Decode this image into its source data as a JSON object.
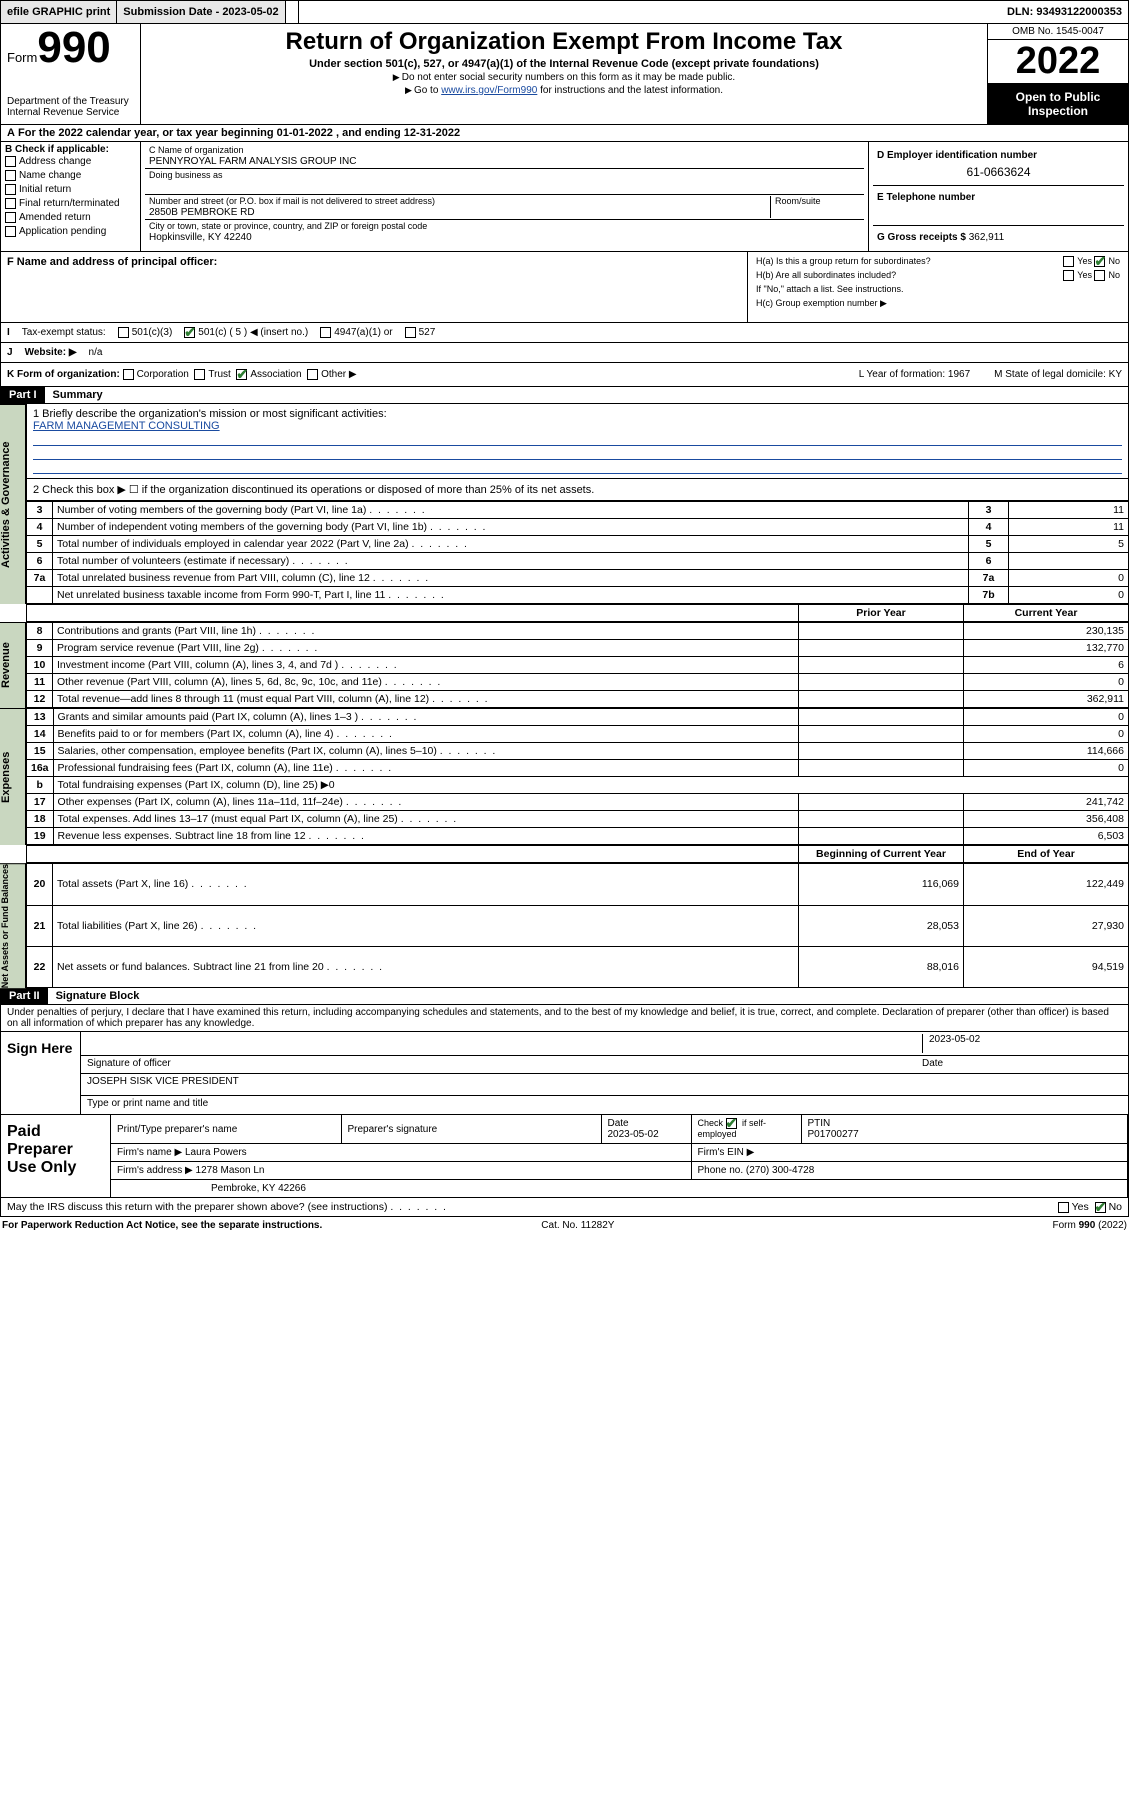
{
  "topbar": {
    "efile": "efile GRAPHIC print",
    "submission_label": "Submission Date - 2023-05-02",
    "dln": "DLN: 93493122000353"
  },
  "header": {
    "form_word": "Form",
    "form_num": "990",
    "dept": "Department of the Treasury\nInternal Revenue Service",
    "title": "Return of Organization Exempt From Income Tax",
    "subtitle": "Under section 501(c), 527, or 4947(a)(1) of the Internal Revenue Code (except private foundations)",
    "note1": "Do not enter social security numbers on this form as it may be made public.",
    "note2_pre": "Go to ",
    "note2_link": "www.irs.gov/Form990",
    "note2_post": " for instructions and the latest information.",
    "omb": "OMB No. 1545-0047",
    "year": "2022",
    "inspection": "Open to Public Inspection"
  },
  "period": {
    "text_a": "For the 2022 calendar year, or tax year beginning ",
    "begin": "01-01-2022",
    "mid": " , and ending ",
    "end": "12-31-2022"
  },
  "b": {
    "heading": "B Check if applicable:",
    "items": [
      "Address change",
      "Name change",
      "Initial return",
      "Final return/terminated",
      "Amended return",
      "Application pending"
    ]
  },
  "c": {
    "name_label": "C Name of organization",
    "name": "PENNYROYAL FARM ANALYSIS GROUP INC",
    "dba_label": "Doing business as",
    "addr_label": "Number and street (or P.O. box if mail is not delivered to street address)",
    "room_label": "Room/suite",
    "addr": "2850B PEMBROKE RD",
    "city_label": "City or town, state or province, country, and ZIP or foreign postal code",
    "city": "Hopkinsville, KY  42240"
  },
  "d": {
    "label": "D Employer identification number",
    "value": "61-0663624"
  },
  "e": {
    "label": "E Telephone number",
    "value": ""
  },
  "g": {
    "label": "G Gross receipts $",
    "value": "362,911"
  },
  "f": {
    "label": "F Name and address of principal officer:"
  },
  "h": {
    "a": "H(a)  Is this a group return for subordinates?",
    "b": "H(b)  Are all subordinates included?",
    "b_note": "If \"No,\" attach a list. See instructions.",
    "c": "H(c)  Group exemption number ▶",
    "yes": "Yes",
    "no": "No"
  },
  "i": {
    "label": "Tax-exempt status:",
    "opts": [
      "501(c)(3)",
      "501(c) ( 5 ) ◀ (insert no.)",
      "4947(a)(1) or",
      "527"
    ],
    "checked_index": 1
  },
  "j": {
    "label": "Website: ▶",
    "value": "n/a"
  },
  "k": {
    "label": "K Form of organization:",
    "opts": [
      "Corporation",
      "Trust",
      "Association",
      "Other ▶"
    ],
    "checked_index": 2,
    "l": "L Year of formation: 1967",
    "m": "M State of legal domicile: KY"
  },
  "part1": {
    "hdr": "Part I",
    "title": "Summary",
    "briefly_label": "1  Briefly describe the organization's mission or most significant activities:",
    "briefly_value": "FARM MANAGEMENT CONSULTING",
    "line2": "2   Check this box ▶ ☐  if the organization discontinued its operations or disposed of more than 25% of its net assets.",
    "sections": {
      "governance": "Activities & Governance",
      "revenue": "Revenue",
      "expenses": "Expenses",
      "netassets": "Net Assets or Fund Balances"
    },
    "gov_rows": [
      {
        "n": "3",
        "t": "Number of voting members of the governing body (Part VI, line 1a)",
        "box": "3",
        "v": "11"
      },
      {
        "n": "4",
        "t": "Number of independent voting members of the governing body (Part VI, line 1b)",
        "box": "4",
        "v": "11"
      },
      {
        "n": "5",
        "t": "Total number of individuals employed in calendar year 2022 (Part V, line 2a)",
        "box": "5",
        "v": "5"
      },
      {
        "n": "6",
        "t": "Total number of volunteers (estimate if necessary)",
        "box": "6",
        "v": ""
      },
      {
        "n": "7a",
        "t": "Total unrelated business revenue from Part VIII, column (C), line 12",
        "box": "7a",
        "v": "0"
      },
      {
        "n": "",
        "t": "Net unrelated business taxable income from Form 990-T, Part I, line 11",
        "box": "7b",
        "v": "0"
      }
    ],
    "two_col_hdr": {
      "prior": "Prior Year",
      "current": "Current Year"
    },
    "rev_rows": [
      {
        "n": "8",
        "t": "Contributions and grants (Part VIII, line 1h)",
        "p": "",
        "c": "230,135"
      },
      {
        "n": "9",
        "t": "Program service revenue (Part VIII, line 2g)",
        "p": "",
        "c": "132,770"
      },
      {
        "n": "10",
        "t": "Investment income (Part VIII, column (A), lines 3, 4, and 7d )",
        "p": "",
        "c": "6"
      },
      {
        "n": "11",
        "t": "Other revenue (Part VIII, column (A), lines 5, 6d, 8c, 9c, 10c, and 11e)",
        "p": "",
        "c": "0"
      },
      {
        "n": "12",
        "t": "Total revenue—add lines 8 through 11 (must equal Part VIII, column (A), line 12)",
        "p": "",
        "c": "362,911"
      }
    ],
    "exp_rows": [
      {
        "n": "13",
        "t": "Grants and similar amounts paid (Part IX, column (A), lines 1–3 )",
        "p": "",
        "c": "0"
      },
      {
        "n": "14",
        "t": "Benefits paid to or for members (Part IX, column (A), line 4)",
        "p": "",
        "c": "0"
      },
      {
        "n": "15",
        "t": "Salaries, other compensation, employee benefits (Part IX, column (A), lines 5–10)",
        "p": "",
        "c": "114,666"
      },
      {
        "n": "16a",
        "t": "Professional fundraising fees (Part IX, column (A), line 11e)",
        "p": "",
        "c": "0"
      },
      {
        "n": "b",
        "t": "Total fundraising expenses (Part IX, column (D), line 25) ▶0",
        "p": null,
        "c": null
      },
      {
        "n": "17",
        "t": "Other expenses (Part IX, column (A), lines 11a–11d, 11f–24e)",
        "p": "",
        "c": "241,742"
      },
      {
        "n": "18",
        "t": "Total expenses. Add lines 13–17 (must equal Part IX, column (A), line 25)",
        "p": "",
        "c": "356,408"
      },
      {
        "n": "19",
        "t": "Revenue less expenses. Subtract line 18 from line 12",
        "p": "",
        "c": "6,503"
      }
    ],
    "na_hdr": {
      "begin": "Beginning of Current Year",
      "end": "End of Year"
    },
    "na_rows": [
      {
        "n": "20",
        "t": "Total assets (Part X, line 16)",
        "p": "116,069",
        "c": "122,449"
      },
      {
        "n": "21",
        "t": "Total liabilities (Part X, line 26)",
        "p": "28,053",
        "c": "27,930"
      },
      {
        "n": "22",
        "t": "Net assets or fund balances. Subtract line 21 from line 20",
        "p": "88,016",
        "c": "94,519"
      }
    ]
  },
  "part2": {
    "hdr": "Part II",
    "title": "Signature Block",
    "jurat": "Under penalties of perjury, I declare that I have examined this return, including accompanying schedules and statements, and to the best of my knowledge and belief, it is true, correct, and complete. Declaration of preparer (other than officer) is based on all information of which preparer has any knowledge.",
    "sign_here": "Sign Here",
    "sig_officer": "Signature of officer",
    "date_label": "Date",
    "date": "2023-05-02",
    "officer_name": "JOSEPH SISK  VICE PRESIDENT",
    "officer_sub": "Type or print name and title",
    "paid": "Paid Preparer Use Only",
    "paid_cols": [
      "Print/Type preparer's name",
      "Preparer's signature",
      "Date",
      "",
      "PTIN"
    ],
    "paid_date": "2023-05-02",
    "paid_check": "Check ✔ if self-employed",
    "ptin": "P01700277",
    "firm_name_label": "Firm's name   ▶",
    "firm_name": "Laura Powers",
    "firm_ein_label": "Firm's EIN ▶",
    "firm_addr_label": "Firm's address ▶",
    "firm_addr1": "1278 Mason Ln",
    "firm_addr2": "Pembroke, KY  42266",
    "phone_label": "Phone no.",
    "phone": "(270) 300-4728",
    "discuss": "May the IRS discuss this return with the preparer shown above? (see instructions)",
    "discuss_yes": "Yes",
    "discuss_no": "No"
  },
  "footer": {
    "left": "For Paperwork Reduction Act Notice, see the separate instructions.",
    "mid": "Cat. No. 11282Y",
    "right": "Form 990 (2022)"
  },
  "colors": {
    "side_bg": "#c9d7c0",
    "link": "#1a4ba0",
    "check": "#2e7d32"
  }
}
